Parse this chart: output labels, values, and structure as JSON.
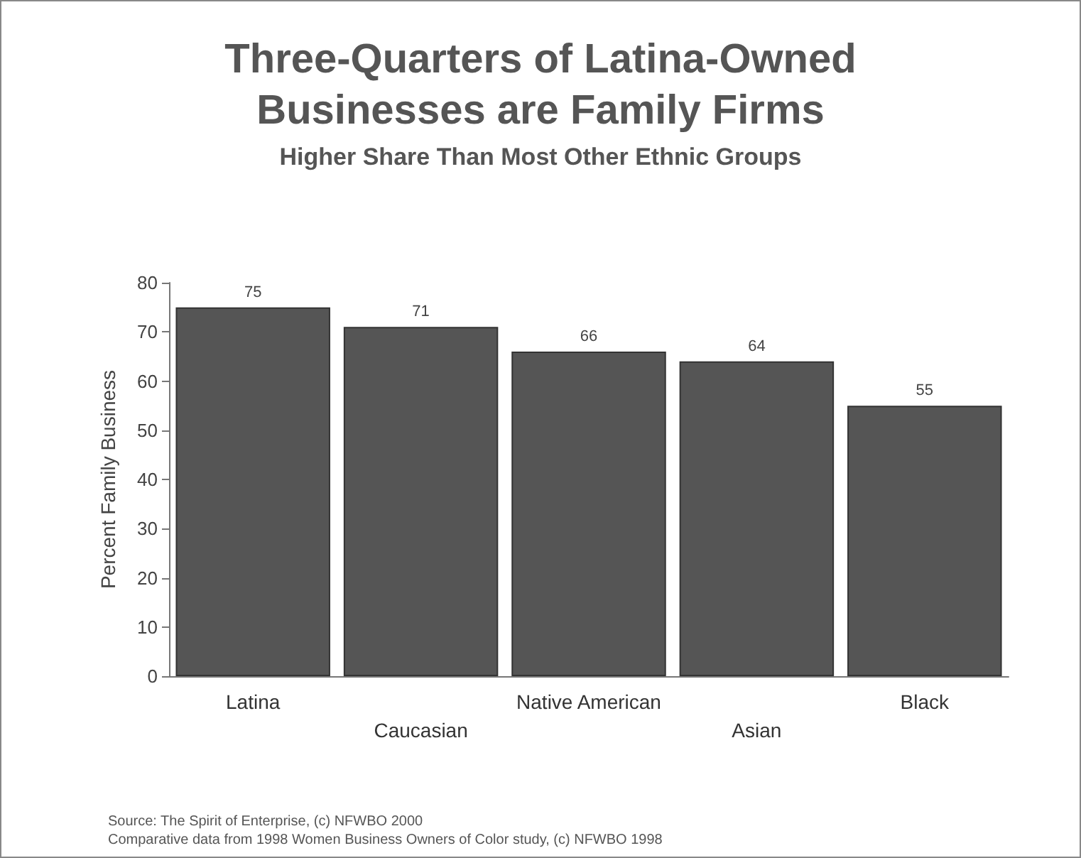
{
  "chart_data": {
    "type": "bar",
    "title": "Three-Quarters of Latina-Owned\nBusinesses are Family Firms",
    "subtitle": "Higher Share Than Most Other Ethnic Groups",
    "ylabel": "Percent Family Business",
    "categories": [
      "Latina",
      "Caucasian",
      "Native American",
      "Asian",
      "Black"
    ],
    "values": [
      75,
      71,
      66,
      64,
      55
    ],
    "color": "#555555",
    "ylim": [
      0,
      80
    ],
    "yticks": [
      0,
      10,
      20,
      30,
      40,
      50,
      60,
      70,
      80
    ],
    "grid": false,
    "data_labels": true,
    "annotations": [
      "Source: The Spirit of Enterprise, (c) NFWBO 2000",
      "Comparative data from 1998 Women Business Owners of Color study, (c) NFWBO 1998"
    ]
  }
}
